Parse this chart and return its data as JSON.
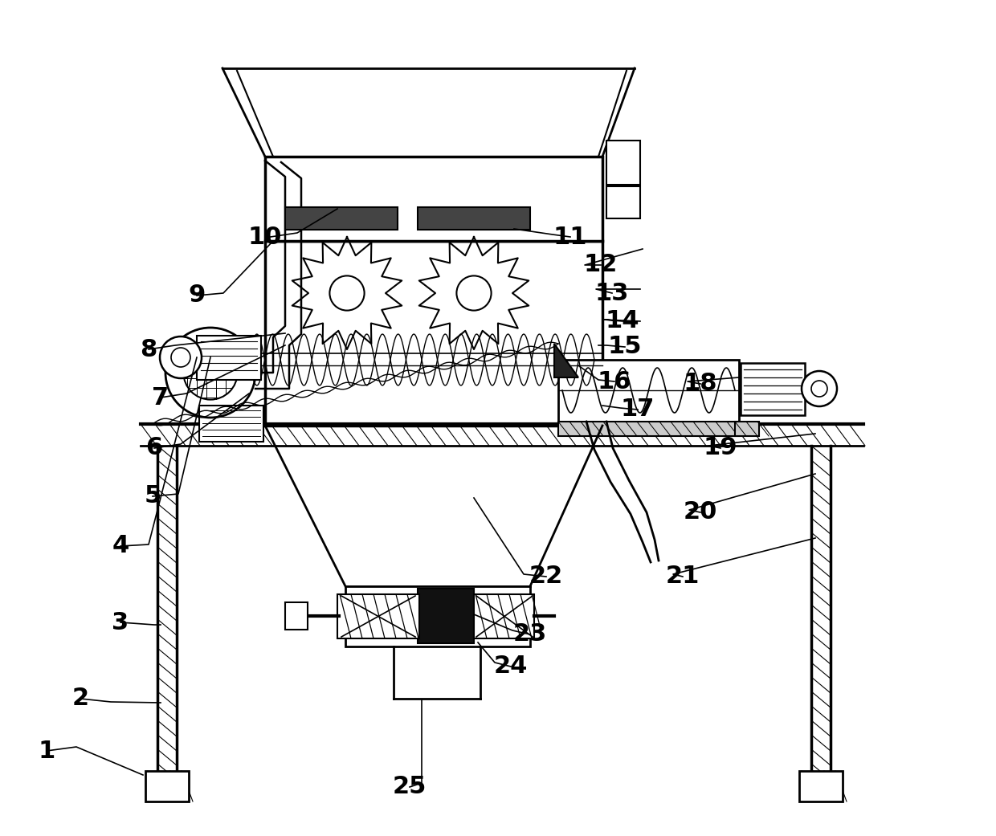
{
  "background_color": "#ffffff",
  "line_color": "#000000",
  "figure_width": 12.4,
  "figure_height": 10.41,
  "dpi": 100
}
